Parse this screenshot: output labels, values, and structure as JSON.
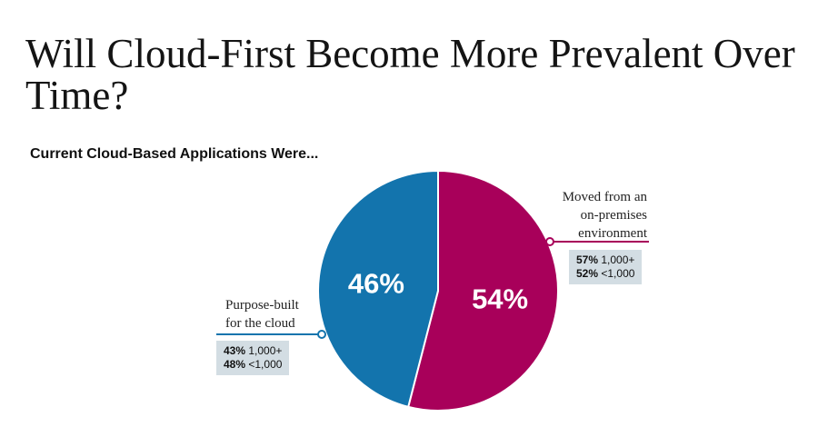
{
  "title": "Will Cloud-First Become More Prevalent Over Time?",
  "chart_data": {
    "type": "pie",
    "subtitle": "Current Cloud-Based Applications Were...",
    "slices": [
      {
        "label": "Moved from an on-premises environment",
        "label_lines": [
          "Moved from an",
          "on-premises",
          "environment"
        ],
        "value": 54,
        "display": "54%",
        "color": "#a8005a",
        "breakdown": [
          {
            "value": "57%",
            "group": "1,000+"
          },
          {
            "value": "52%",
            "group": "<1,000"
          }
        ]
      },
      {
        "label": "Purpose-built for the cloud",
        "label_lines": [
          "Purpose-built",
          "for the cloud"
        ],
        "value": 46,
        "display": "46%",
        "color": "#1374ad",
        "breakdown": [
          {
            "value": "43%",
            "group": "1,000+"
          },
          {
            "value": "48%",
            "group": "<1,000"
          }
        ]
      }
    ],
    "legend": "none",
    "start_angle": "top",
    "direction": "clockwise"
  }
}
